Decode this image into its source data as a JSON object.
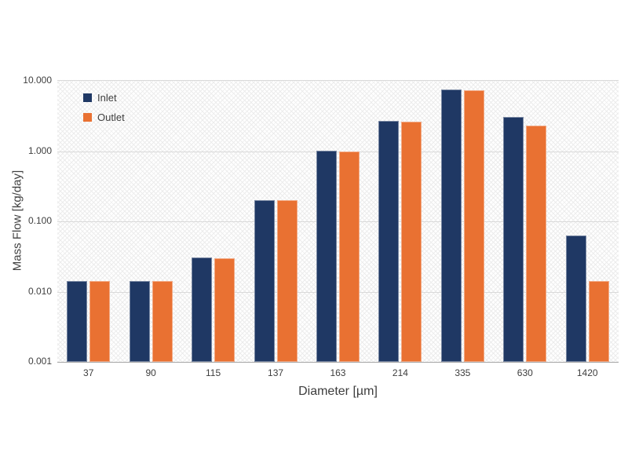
{
  "chart_data": {
    "type": "bar",
    "title": "",
    "xlabel": "Diameter [µm]",
    "ylabel": "Mass Flow [kg/day]",
    "y_scale": "log",
    "ylim": [
      0.001,
      10
    ],
    "y_ticks": [
      "10.000",
      "1.000",
      "0.100",
      "0.010",
      "0.001"
    ],
    "grid": true,
    "legend_position": "top-left-inside",
    "plot_background": "diagonal-crosshatch",
    "categories": [
      "37",
      "90",
      "115",
      "137",
      "163",
      "214",
      "335",
      "630",
      "1420"
    ],
    "series": [
      {
        "name": "Inlet",
        "color": "#1F3864",
        "values": [
          0.014,
          0.014,
          0.031,
          0.2,
          1.02,
          2.7,
          7.5,
          3.1,
          0.063
        ]
      },
      {
        "name": "Outlet",
        "color": "#E97132",
        "values": [
          0.014,
          0.014,
          0.03,
          0.2,
          1.0,
          2.6,
          7.3,
          2.3,
          0.014
        ]
      }
    ]
  }
}
